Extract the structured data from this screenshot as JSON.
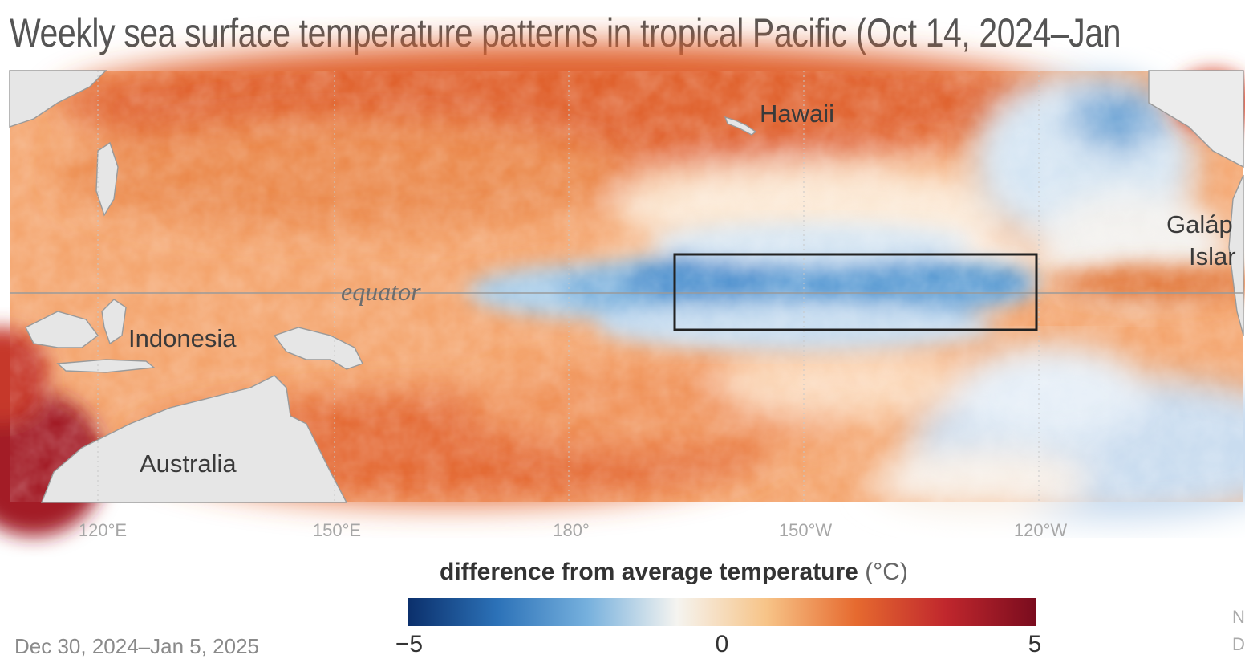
{
  "title": "Weekly sea surface temperature patterns in tropical Pacific (Oct 14, 2024–Jan",
  "map": {
    "labels": {
      "hawaii": "Hawaii",
      "galapagos_line1": "Galáp",
      "galapagos_line2": "Islar",
      "equator": "equator",
      "indonesia": "Indonesia",
      "australia": "Australia"
    },
    "longitude_ticks": [
      "120°E",
      "150°E",
      "180°",
      "150°W",
      "120°W"
    ],
    "highlight_region": "Niño 3.4 box (black outline)"
  },
  "legend": {
    "title": "difference from average temperature",
    "unit": "(°C)",
    "min_label": "−5",
    "mid_label": "0",
    "max_label": "5",
    "colors": [
      "#0b2f6b",
      "#2c72b8",
      "#76b0dd",
      "#f5f4f0",
      "#f7c488",
      "#e66a2f",
      "#c0272d",
      "#7a0c1e"
    ]
  },
  "date_range": "Dec 30, 2024–Jan 5, 2025",
  "credit_partial": [
    "N",
    "D"
  ]
}
